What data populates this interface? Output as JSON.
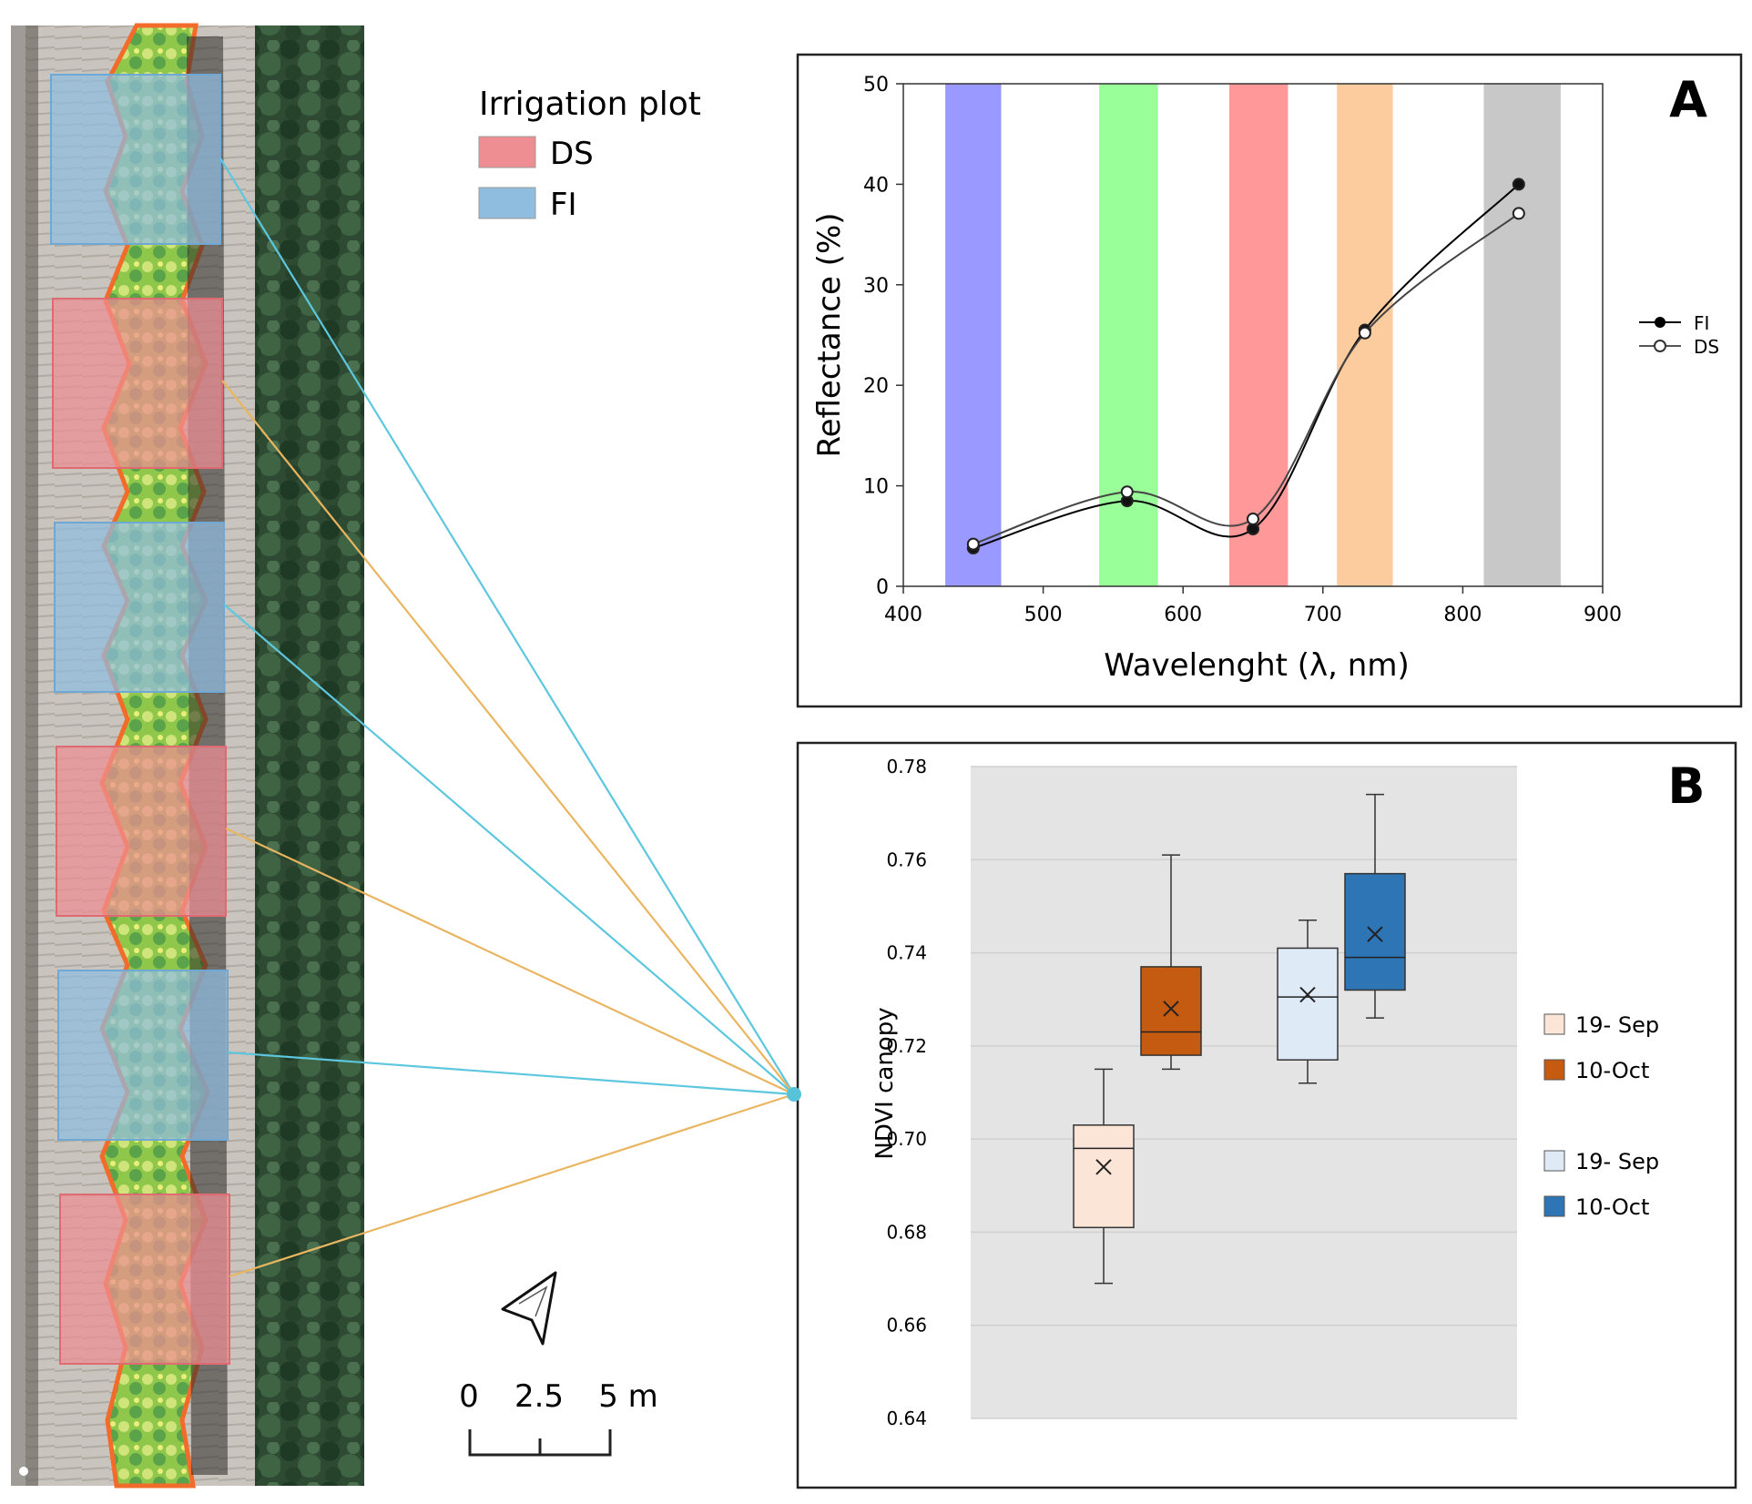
{
  "legend": {
    "title": "Irrigation plot",
    "items": [
      {
        "label": "DS",
        "color": "#ee8e93"
      },
      {
        "label": "FI",
        "color": "#8fbde0"
      }
    ]
  },
  "scale_bar": {
    "ticks": [
      "0",
      "2.5",
      "5 m"
    ]
  },
  "aerial": {
    "plots": [
      "FI",
      "DS",
      "FI",
      "DS",
      "FI",
      "DS"
    ],
    "line_colors": {
      "FI": "#5cc7de",
      "DS": "#e9b561"
    }
  },
  "panel_a": {
    "letter": "A"
  },
  "panel_b": {
    "letter": "B"
  },
  "chart_data": [
    {
      "type": "line",
      "title": "",
      "xlabel": "Wavelenght (λ, nm)",
      "ylabel": "Reflectance (%)",
      "xlim": [
        400,
        900
      ],
      "ylim": [
        0,
        50
      ],
      "xticks": [
        "400",
        "500",
        "600",
        "700",
        "800",
        "900"
      ],
      "yticks": [
        "0",
        "10",
        "20",
        "30",
        "40",
        "50"
      ],
      "bands": [
        {
          "name": "blue",
          "from": 430,
          "to": 470,
          "color": "#9999ff"
        },
        {
          "name": "green",
          "from": 540,
          "to": 582,
          "color": "#99ff99"
        },
        {
          "name": "red",
          "from": 633,
          "to": 675,
          "color": "#ff9999"
        },
        {
          "name": "red-edge",
          "from": 710,
          "to": 750,
          "color": "#fccc9e"
        },
        {
          "name": "nir",
          "from": 815,
          "to": 870,
          "color": "#c8c8c8"
        }
      ],
      "x": [
        450,
        560,
        650,
        730,
        840
      ],
      "series": [
        {
          "name": "FI",
          "marker": "filled",
          "values": [
            3.8,
            8.5,
            5.7,
            25.5,
            40.0
          ]
        },
        {
          "name": "DS",
          "marker": "open",
          "values": [
            4.2,
            9.4,
            6.7,
            25.2,
            37.1
          ]
        }
      ],
      "legend_position": "right"
    },
    {
      "type": "box",
      "ylabel": "NDVI canopy",
      "ylim": [
        0.64,
        0.78
      ],
      "yticks": [
        "0.64",
        "0.66",
        "0.68",
        "0.70",
        "0.72",
        "0.74",
        "0.76",
        "0.78"
      ],
      "legend_groups": [
        [
          {
            "label": "19- Sep",
            "color": "#fbe5d6"
          },
          {
            "label": "10-Oct",
            "color": "#c55a11"
          }
        ],
        [
          {
            "label": "19- Sep",
            "color": "#deebf7"
          },
          {
            "label": "10-Oct",
            "color": "#2e75b6"
          }
        ]
      ],
      "boxes": [
        {
          "group": "DS",
          "date": "19- Sep",
          "color": "#fbe5d6",
          "min": 0.669,
          "q1": 0.681,
          "median": 0.698,
          "q3": 0.703,
          "max": 0.715,
          "mean": 0.694
        },
        {
          "group": "DS",
          "date": "10-Oct",
          "color": "#c55a11",
          "min": 0.715,
          "q1": 0.718,
          "median": 0.723,
          "q3": 0.737,
          "max": 0.761,
          "mean": 0.728
        },
        {
          "group": "FI",
          "date": "19- Sep",
          "color": "#deebf7",
          "min": 0.712,
          "q1": 0.717,
          "median": 0.7305,
          "q3": 0.741,
          "max": 0.747,
          "mean": 0.731
        },
        {
          "group": "FI",
          "date": "10-Oct",
          "color": "#2e75b6",
          "min": 0.726,
          "q1": 0.732,
          "median": 0.739,
          "q3": 0.757,
          "max": 0.774,
          "mean": 0.744
        }
      ],
      "legend_position": "right"
    }
  ]
}
